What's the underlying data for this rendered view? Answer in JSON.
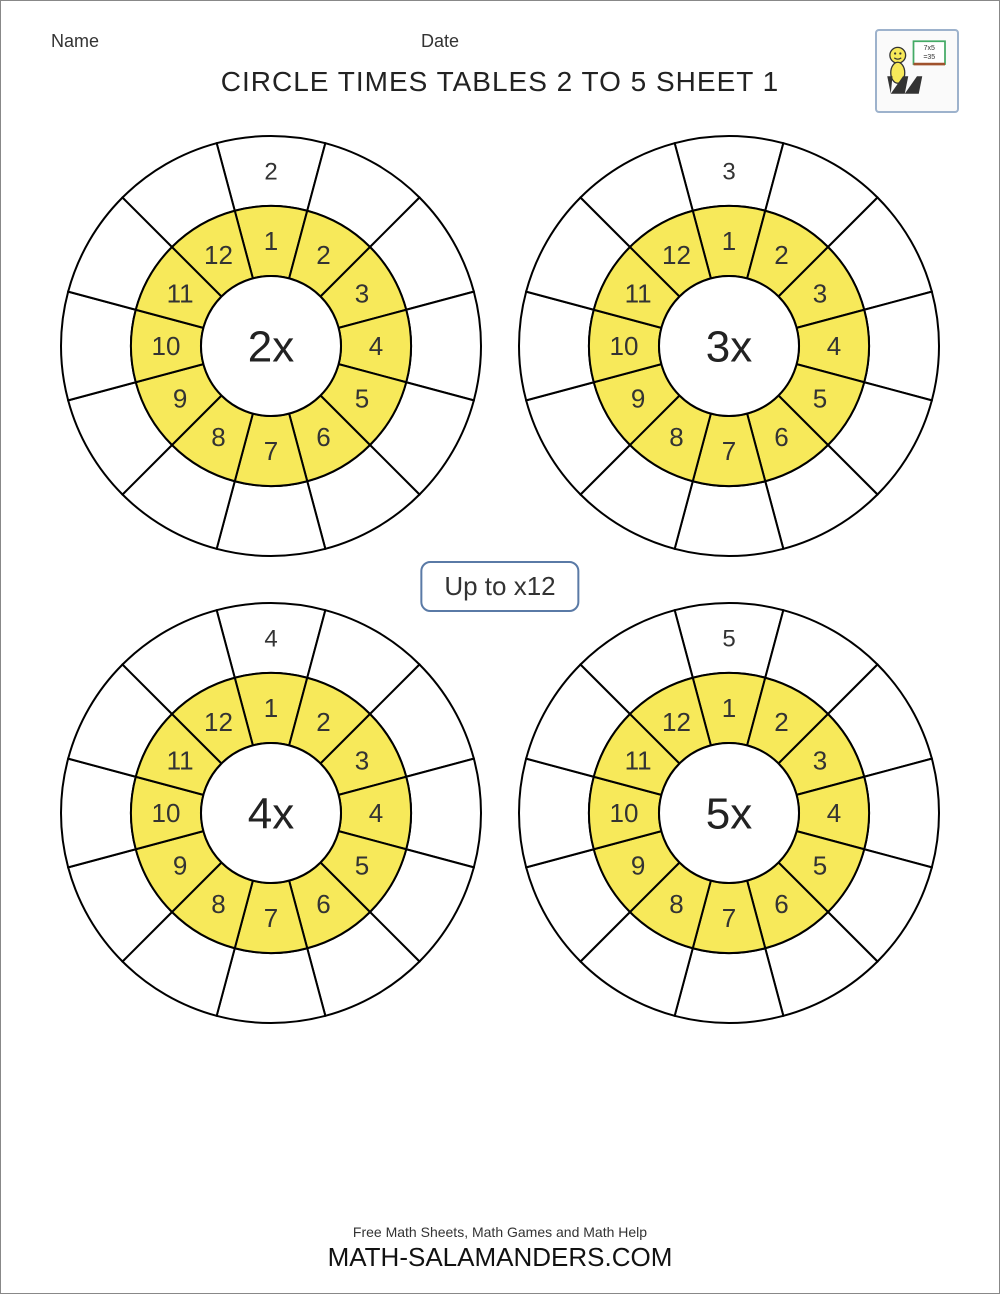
{
  "header": {
    "name_label": "Name",
    "date_label": "Date"
  },
  "title": "CIRCLE TIMES TABLES 2 TO 5 SHEET 1",
  "center_badge": "Up to x12",
  "footer": {
    "tagline": "Free Math Sheets, Math Games and Math Help",
    "site": "MATH-SALAMANDERS.COM"
  },
  "style": {
    "inner_fill": "#f7e95a",
    "outer_fill": "#ffffff",
    "stroke": "#000000",
    "stroke_width": 2,
    "badge_border": "#5a7aa6",
    "num_sectors": 12,
    "start_angle_deg": -105,
    "r_center": 70,
    "r_inner": 140,
    "r_outer": 210
  },
  "wheels": [
    {
      "id": "wheel-2x",
      "center": "2x",
      "inner": [
        1,
        2,
        3,
        4,
        5,
        6,
        7,
        8,
        9,
        10,
        11,
        12
      ],
      "outer": [
        "2",
        "",
        "",
        "",
        "",
        "",
        "",
        "",
        "",
        "",
        "",
        ""
      ]
    },
    {
      "id": "wheel-3x",
      "center": "3x",
      "inner": [
        1,
        2,
        3,
        4,
        5,
        6,
        7,
        8,
        9,
        10,
        11,
        12
      ],
      "outer": [
        "3",
        "",
        "",
        "",
        "",
        "",
        "",
        "",
        "",
        "",
        "",
        ""
      ]
    },
    {
      "id": "wheel-4x",
      "center": "4x",
      "inner": [
        1,
        2,
        3,
        4,
        5,
        6,
        7,
        8,
        9,
        10,
        11,
        12
      ],
      "outer": [
        "4",
        "",
        "",
        "",
        "",
        "",
        "",
        "",
        "",
        "",
        "",
        ""
      ]
    },
    {
      "id": "wheel-5x",
      "center": "5x",
      "inner": [
        1,
        2,
        3,
        4,
        5,
        6,
        7,
        8,
        9,
        10,
        11,
        12
      ],
      "outer": [
        "5",
        "",
        "",
        "",
        "",
        "",
        "",
        "",
        "",
        "",
        "",
        ""
      ]
    }
  ]
}
